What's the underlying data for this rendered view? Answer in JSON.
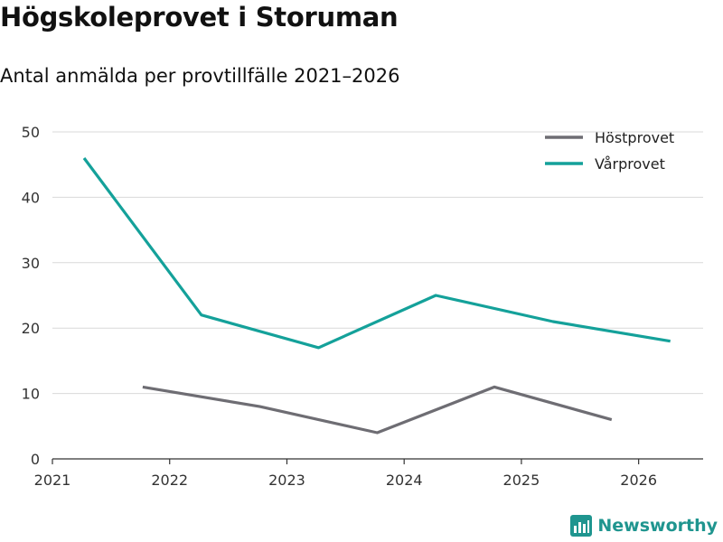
{
  "chart_data": {
    "type": "line",
    "title": "Högskoleprovet i Storuman",
    "subtitle": "Antal anmälda per provtillfälle 2021–2026",
    "xlabel": "",
    "ylabel": "",
    "xlim": [
      2021,
      2026.55
    ],
    "ylim": [
      0,
      50
    ],
    "x_ticks": [
      2021,
      2022,
      2023,
      2024,
      2025,
      2026
    ],
    "y_ticks": [
      0,
      10,
      20,
      30,
      40,
      50
    ],
    "grid": true,
    "legend_position": "top-right",
    "series": [
      {
        "name": "Höstprovet",
        "color": "#6e6d73",
        "x": [
          2021.77,
          2022.77,
          2023.77,
          2024.77,
          2025.77
        ],
        "values": [
          11,
          8,
          4,
          11,
          6
        ]
      },
      {
        "name": "Vårprovet",
        "color": "#14a19a",
        "x": [
          2021.27,
          2022.27,
          2023.27,
          2024.27,
          2025.27,
          2026.27
        ],
        "values": [
          46,
          22,
          17,
          25,
          21,
          18
        ]
      }
    ]
  },
  "brand": {
    "name": "Newsworthy",
    "color": "#1f958f",
    "icon": "bar-chart-logo-icon"
  }
}
